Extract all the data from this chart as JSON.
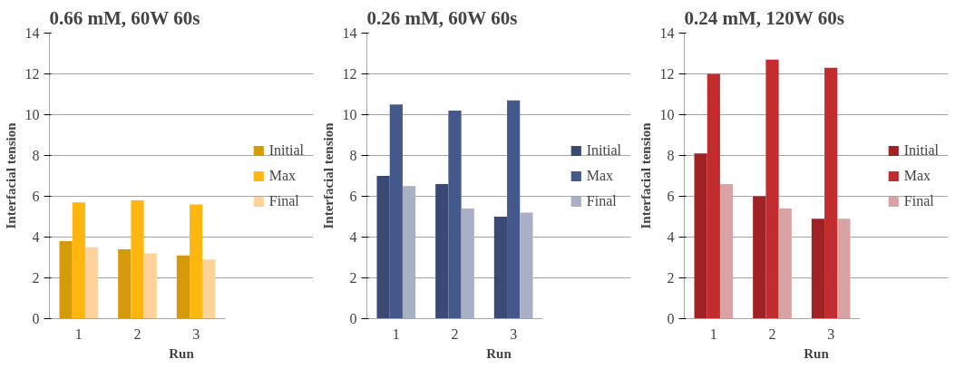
{
  "chart_data": [
    {
      "type": "bar",
      "title": "0.66 mM, 60W 60s",
      "xlabel": "Run",
      "ylabel": "Interfacial tension",
      "categories": [
        "1",
        "2",
        "3"
      ],
      "ylim": [
        0,
        14
      ],
      "yticks": [
        0,
        2,
        4,
        6,
        8,
        10,
        12,
        14
      ],
      "grid": "y",
      "legend": "right",
      "series": [
        {
          "name": "Initial",
          "color": "#d49a0a",
          "values": [
            3.8,
            3.4,
            3.1
          ]
        },
        {
          "name": "Max",
          "color": "#ffb70f",
          "values": [
            5.7,
            5.8,
            5.6
          ]
        },
        {
          "name": "Final",
          "color": "#fdd39a",
          "values": [
            3.5,
            3.2,
            2.9
          ]
        }
      ]
    },
    {
      "type": "bar",
      "title": "0.26 mM, 60W 60s",
      "xlabel": "Run",
      "ylabel": "Interfacial tension",
      "categories": [
        "1",
        "2",
        "3"
      ],
      "ylim": [
        0,
        14
      ],
      "yticks": [
        0,
        2,
        4,
        6,
        8,
        10,
        12,
        14
      ],
      "grid": "y",
      "legend": "right",
      "series": [
        {
          "name": "Initial",
          "color": "#3a4a75",
          "values": [
            7.0,
            6.6,
            5.0
          ]
        },
        {
          "name": "Max",
          "color": "#45588c",
          "values": [
            10.5,
            10.2,
            10.7
          ]
        },
        {
          "name": "Final",
          "color": "#a9afc4",
          "values": [
            6.5,
            5.4,
            5.2
          ]
        }
      ]
    },
    {
      "type": "bar",
      "title": "0.24 mM, 120W 60s",
      "xlabel": "Run",
      "ylabel": "Interfacial tension",
      "categories": [
        "1",
        "2",
        "3"
      ],
      "ylim": [
        0,
        14
      ],
      "yticks": [
        0,
        2,
        4,
        6,
        8,
        10,
        12,
        14
      ],
      "grid": "y",
      "legend": "right",
      "series": [
        {
          "name": "Initial",
          "color": "#a02225",
          "values": [
            8.1,
            6.0,
            4.9
          ]
        },
        {
          "name": "Max",
          "color": "#c22c2f",
          "values": [
            12.0,
            12.7,
            12.3
          ]
        },
        {
          "name": "Final",
          "color": "#d9a2a3",
          "values": [
            6.6,
            5.4,
            4.9
          ]
        }
      ]
    }
  ]
}
